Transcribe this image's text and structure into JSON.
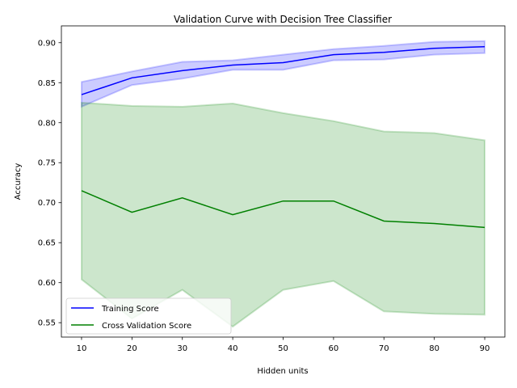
{
  "chart_data": {
    "type": "line",
    "title": "Validation Curve with Decision Tree Classifier",
    "xlabel": "Hidden units",
    "ylabel": "Accuracy",
    "x": [
      10,
      20,
      30,
      40,
      50,
      60,
      70,
      80,
      90
    ],
    "xticks": [
      10,
      20,
      30,
      40,
      50,
      60,
      70,
      80,
      90
    ],
    "xlim": [
      6,
      94
    ],
    "ylim": [
      0.532,
      0.921
    ],
    "yticks": [
      0.55,
      0.6,
      0.65,
      0.7,
      0.75,
      0.8,
      0.85,
      0.9
    ],
    "ytick_labels": [
      "0.55",
      "0.60",
      "0.65",
      "0.70",
      "0.75",
      "0.80",
      "0.85",
      "0.90"
    ],
    "grid": false,
    "legend_position": "lower-left",
    "series": [
      {
        "name": "Training Score",
        "color": "#0000ff",
        "band_color": "#0000ff",
        "values": [
          0.835,
          0.856,
          0.865,
          0.872,
          0.875,
          0.885,
          0.888,
          0.893,
          0.895
        ],
        "lower": [
          0.82,
          0.847,
          0.855,
          0.866,
          0.866,
          0.878,
          0.879,
          0.885,
          0.887
        ],
        "upper": [
          0.851,
          0.864,
          0.876,
          0.878,
          0.885,
          0.892,
          0.896,
          0.901,
          0.902
        ]
      },
      {
        "name": "Cross Validation Score",
        "color": "#008000",
        "band_color": "#008000",
        "values": [
          0.715,
          0.688,
          0.706,
          0.685,
          0.702,
          0.702,
          0.677,
          0.674,
          0.669
        ],
        "lower": [
          0.604,
          0.555,
          0.591,
          0.545,
          0.591,
          0.602,
          0.564,
          0.561,
          0.56
        ],
        "upper": [
          0.825,
          0.821,
          0.82,
          0.824,
          0.812,
          0.802,
          0.789,
          0.787,
          0.778
        ]
      }
    ]
  }
}
